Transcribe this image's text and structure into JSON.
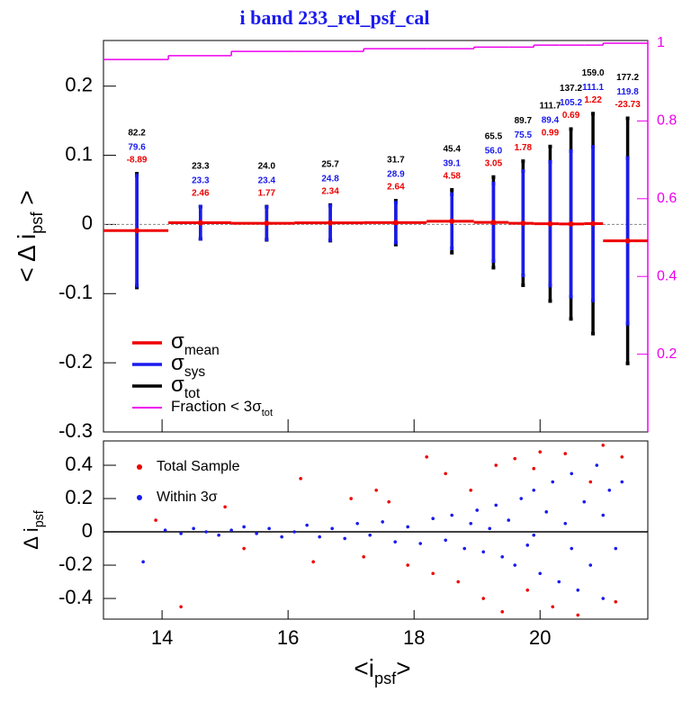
{
  "chart_data": [
    {
      "type": "errorbar",
      "title": "i band 233_rel_psf_cal",
      "ylabel": "< Δ i",
      "ylabel_sub": "psf",
      "ylabel_end": " >",
      "xlim": [
        13.07,
        21.71
      ],
      "xticks": [
        14,
        16,
        18,
        20
      ],
      "ylim": [
        -0.3,
        0.266
      ],
      "yticks": [
        -0.3,
        -0.2,
        -0.1,
        0,
        0.1,
        0.2
      ],
      "y2lim": [
        0,
        1.007
      ],
      "y2ticks": [
        0.2,
        0.4,
        0.6,
        0.8,
        1
      ],
      "x": [
        13.6,
        14.61,
        15.66,
        16.67,
        17.71,
        18.6,
        19.26,
        19.73,
        20.16,
        20.49,
        20.84,
        21.39
      ],
      "bins": [
        13.07,
        14.1,
        15.1,
        16.1,
        17.2,
        18.2,
        18.95,
        19.5,
        19.9,
        20.3,
        20.7,
        21.0,
        21.71
      ],
      "series": [
        {
          "name": "σ",
          "name_sub": "mean",
          "color": "#ee0000",
          "values": [
            -0.00889,
            0.00246,
            0.00177,
            0.00234,
            0.00264,
            0.00458,
            0.00305,
            0.00178,
            0.00099,
            0.00069,
            0.00122,
            -0.02373
          ],
          "value_labels": [
            "-8.89",
            "2.46",
            "1.77",
            "2.34",
            "2.64",
            "4.58",
            "3.05",
            "1.78",
            "0.99",
            "0.69",
            "1.22",
            "-23.73"
          ]
        },
        {
          "name": "σ",
          "name_sub": "sys",
          "color": "#1a1aee",
          "values": [
            0.0796,
            0.0233,
            0.0234,
            0.0248,
            0.0289,
            0.0391,
            0.056,
            0.0755,
            0.0894,
            0.1052,
            0.1111,
            0.1198
          ],
          "value_labels": [
            "79.6",
            "23.3",
            "23.4",
            "24.8",
            "28.9",
            "39.1",
            "56.0",
            "75.5",
            "89.4",
            "105.2",
            "111.1",
            "119.8"
          ]
        },
        {
          "name": "σ",
          "name_sub": "tot",
          "color": "#000000",
          "values": [
            0.0822,
            0.0233,
            0.024,
            0.0257,
            0.0317,
            0.0454,
            0.0655,
            0.0897,
            0.1117,
            0.1372,
            0.159,
            0.1772
          ],
          "value_labels": [
            "82.2",
            "23.3",
            "24.0",
            "25.7",
            "31.7",
            "45.4",
            "65.5",
            "89.7",
            "111.7",
            "137.2",
            "159.0",
            "177.2"
          ]
        },
        {
          "name": "Fraction < 3σ",
          "name_sub": "tot",
          "color": "#ee00ee",
          "axis": "y2",
          "values": [
            0.958,
            0.968,
            0.979,
            0.979,
            0.986,
            0.986,
            0.99,
            0.99,
            0.995,
            0.995,
            0.995,
            1.0
          ]
        }
      ]
    },
    {
      "type": "scatter",
      "xlabel": "<i",
      "xlabel_sub": "psf",
      "xlabel_end": ">",
      "ylabel": "Δ i",
      "ylabel_sub": "psf",
      "xlim": [
        13.07,
        21.71
      ],
      "xticks": [
        14,
        16,
        18,
        20
      ],
      "ylim": [
        -0.524,
        0.546
      ],
      "yticks": [
        -0.4,
        -0.2,
        0,
        0.2,
        0.4
      ],
      "series": [
        {
          "name": "Total Sample",
          "color": "#ee0000",
          "x": [
            13.9,
            14.3,
            15.0,
            15.3,
            16.2,
            16.4,
            17.0,
            17.2,
            17.6,
            17.9,
            18.2,
            18.5,
            18.7,
            18.9,
            19.1,
            19.3,
            19.4,
            19.6,
            19.8,
            20.0,
            20.2,
            20.4,
            20.6,
            20.8,
            21.0,
            21.2,
            21.3,
            17.4,
            18.3,
            19.9
          ],
          "values": [
            0.07,
            -0.45,
            0.15,
            -0.1,
            0.32,
            -0.18,
            0.2,
            -0.15,
            0.18,
            -0.2,
            0.45,
            0.35,
            -0.3,
            0.25,
            -0.4,
            0.4,
            -0.48,
            0.44,
            -0.35,
            0.48,
            -0.45,
            0.47,
            -0.5,
            0.3,
            0.52,
            -0.42,
            0.45,
            0.25,
            -0.25,
            0.38
          ]
        },
        {
          "name": "Within 3σ",
          "color": "#1a1aee",
          "x": [
            14.05,
            14.3,
            14.5,
            14.7,
            14.9,
            15.1,
            15.3,
            15.5,
            15.7,
            15.9,
            16.1,
            16.3,
            16.5,
            16.7,
            16.9,
            17.1,
            17.3,
            17.5,
            17.7,
            17.9,
            18.1,
            18.3,
            18.5,
            18.6,
            18.8,
            18.9,
            19.0,
            19.1,
            19.2,
            19.3,
            19.4,
            19.5,
            19.6,
            19.7,
            19.8,
            19.9,
            20.0,
            20.1,
            20.2,
            20.3,
            20.4,
            20.5,
            20.6,
            20.7,
            20.8,
            20.9,
            21.0,
            21.1,
            21.2,
            21.3,
            21.0,
            20.5,
            19.9,
            13.7
          ],
          "values": [
            0.01,
            -0.01,
            0.02,
            0.0,
            -0.02,
            0.01,
            0.03,
            -0.01,
            0.02,
            -0.03,
            0.0,
            0.04,
            -0.03,
            0.02,
            -0.04,
            0.05,
            -0.02,
            0.06,
            -0.06,
            0.03,
            -0.07,
            0.08,
            -0.05,
            0.1,
            -0.1,
            0.05,
            0.13,
            -0.12,
            0.02,
            0.16,
            -0.15,
            0.07,
            -0.2,
            0.2,
            -0.08,
            0.25,
            -0.25,
            0.12,
            0.3,
            -0.3,
            0.05,
            0.35,
            -0.35,
            0.18,
            -0.2,
            0.4,
            -0.4,
            0.25,
            -0.1,
            0.3,
            0.1,
            -0.1,
            -0.02,
            -0.18
          ]
        }
      ]
    }
  ]
}
